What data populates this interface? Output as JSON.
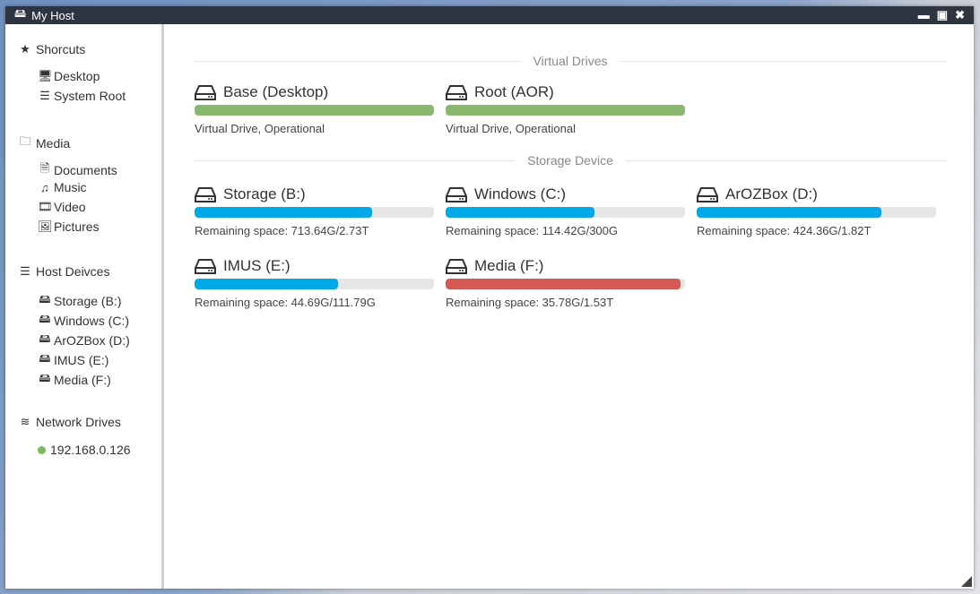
{
  "window": {
    "title": "My Host",
    "icon": "hdd-icon"
  },
  "sidebar": {
    "shortcuts": {
      "label": "Shorcuts",
      "items": [
        {
          "label": "Desktop",
          "icon": "desktop-icon"
        },
        {
          "label": "System Root",
          "icon": "server-icon"
        }
      ]
    },
    "media": {
      "label": "Media",
      "items": [
        {
          "label": "Documents",
          "icon": "file-icon"
        },
        {
          "label": "Music",
          "icon": "music-icon"
        },
        {
          "label": "Video",
          "icon": "film-icon"
        },
        {
          "label": "Pictures",
          "icon": "image-icon"
        }
      ]
    },
    "host": {
      "label": "Host Deivces",
      "items": [
        {
          "label": "Storage (B:)"
        },
        {
          "label": "Windows (C:)"
        },
        {
          "label": "ArOZBox (D:)"
        },
        {
          "label": "IMUS (E:)"
        },
        {
          "label": "Media (F:)"
        }
      ]
    },
    "network": {
      "label": "Network Drives",
      "items": [
        {
          "label": "192.168.0.126",
          "status_color": "#7cb960"
        }
      ]
    }
  },
  "main": {
    "virtual": {
      "label": "Virtual Drives",
      "drives": [
        {
          "name": "Base (Desktop)",
          "status": "Virtual Drive, Operational",
          "used_percent": 100,
          "color": "#8ab86f"
        },
        {
          "name": "Root (AOR)",
          "status": "Virtual Drive, Operational",
          "used_percent": 100,
          "color": "#8ab86f"
        }
      ]
    },
    "storage": {
      "label": "Storage Device",
      "drives": [
        {
          "name": "Storage (B:)",
          "status": "Remaining space: 713.64G/2.73T",
          "used_percent": 74,
          "color": "#00a8e8"
        },
        {
          "name": "Windows (C:)",
          "status": "Remaining space: 114.42G/300G",
          "used_percent": 62,
          "color": "#00a8e8"
        },
        {
          "name": "ArOZBox (D:)",
          "status": "Remaining space: 424.36G/1.82T",
          "used_percent": 77,
          "color": "#00a8e8"
        },
        {
          "name": "IMUS (E:)",
          "status": "Remaining space: 44.69G/111.79G",
          "used_percent": 60,
          "color": "#00a8e8"
        },
        {
          "name": "Media (F:)",
          "status": "Remaining space: 35.78G/1.53T",
          "used_percent": 98,
          "color": "#d25a53"
        }
      ]
    }
  }
}
